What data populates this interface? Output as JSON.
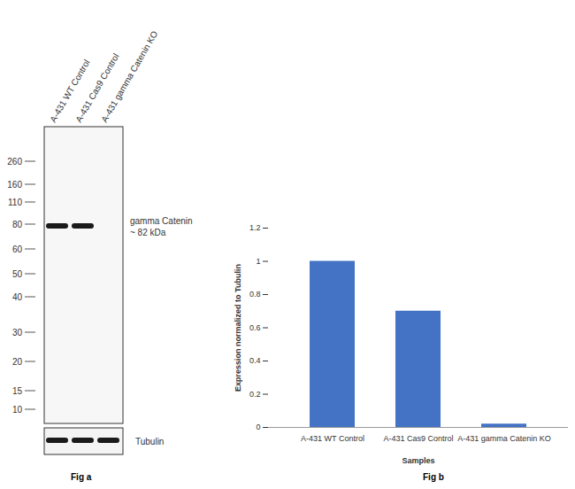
{
  "chart_data": {
    "type": "bar",
    "categories": [
      "A-431 WT Control",
      "A-431 Cas9 Control",
      "A-431 gamma Catenin KO"
    ],
    "values": [
      1,
      0.7,
      0.02
    ],
    "color": "#4472c4",
    "ylim": [
      0,
      1.2
    ],
    "yticks": [
      0,
      0.2,
      0.4,
      0.6,
      0.8,
      1,
      1.2
    ],
    "x_label": "Samples",
    "y_label": "Expression normalized to Tubulin",
    "caption": "Fig b"
  },
  "blot": {
    "lanes": [
      "A-431 WT Control",
      "A-431 Cas9 Control",
      "A-431 gamma Catenin KO"
    ],
    "marker_kda": [
      260,
      160,
      110,
      80,
      60,
      50,
      40,
      30,
      20,
      15,
      10
    ],
    "target": "gamma Catenin",
    "target_size": "~ 82 kDa",
    "target_band": [
      true,
      true,
      false
    ],
    "loading_control": "Tubulin",
    "loading_band": [
      true,
      true,
      true
    ],
    "caption": "Fig a"
  }
}
